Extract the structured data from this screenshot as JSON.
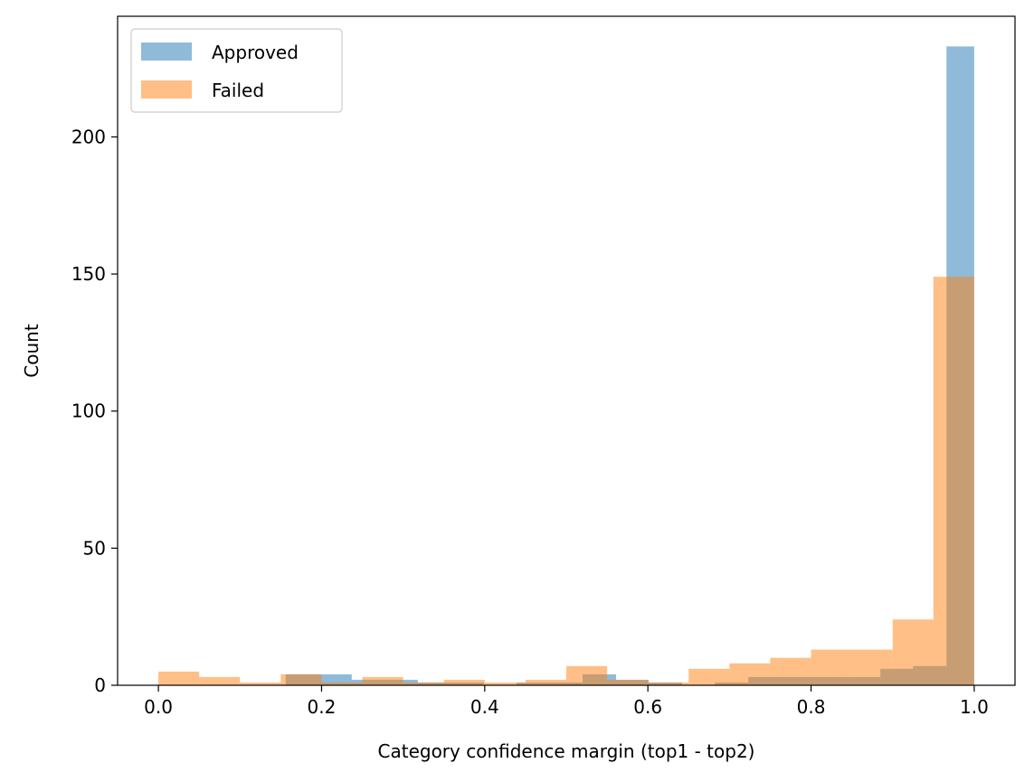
{
  "chart_data": {
    "type": "histogram",
    "title": "",
    "xlabel": "Category confidence margin (top1 - top2)",
    "ylabel": "Count",
    "xlim": [
      -0.05,
      1.05
    ],
    "ylim": [
      0,
      244
    ],
    "xticks": [
      0.0,
      0.2,
      0.4,
      0.6,
      0.8,
      1.0
    ],
    "xtick_labels": [
      "0.0",
      "0.2",
      "0.4",
      "0.6",
      "0.8",
      "1.0"
    ],
    "yticks": [
      0,
      50,
      100,
      150,
      200
    ],
    "ytick_labels": [
      "0",
      "50",
      "100",
      "150",
      "200"
    ],
    "grid": false,
    "legend": "top-left",
    "series": [
      {
        "name": "Approved",
        "color": "#1f77b4",
        "opacity": 0.5,
        "bins": [
          [
            0.156,
            0.196,
            4
          ],
          [
            0.196,
            0.237,
            4
          ],
          [
            0.237,
            0.277,
            2
          ],
          [
            0.277,
            0.318,
            2
          ],
          [
            0.318,
            0.358,
            1
          ],
          [
            0.358,
            0.399,
            1
          ],
          [
            0.399,
            0.439,
            0
          ],
          [
            0.439,
            0.48,
            1
          ],
          [
            0.48,
            0.52,
            1
          ],
          [
            0.52,
            0.561,
            4
          ],
          [
            0.561,
            0.601,
            2
          ],
          [
            0.601,
            0.642,
            1
          ],
          [
            0.642,
            0.682,
            0
          ],
          [
            0.682,
            0.723,
            1
          ],
          [
            0.723,
            0.763,
            3
          ],
          [
            0.763,
            0.804,
            3
          ],
          [
            0.804,
            0.844,
            3
          ],
          [
            0.844,
            0.885,
            3
          ],
          [
            0.885,
            0.925,
            6
          ],
          [
            0.925,
            0.966,
            7
          ],
          [
            0.966,
            1.0,
            233
          ]
        ]
      },
      {
        "name": "Failed",
        "color": "#ff7f0e",
        "opacity": 0.5,
        "bins": [
          [
            0.0,
            0.05,
            5
          ],
          [
            0.05,
            0.1,
            3
          ],
          [
            0.1,
            0.15,
            1
          ],
          [
            0.15,
            0.2,
            4
          ],
          [
            0.2,
            0.25,
            1
          ],
          [
            0.25,
            0.3,
            3
          ],
          [
            0.3,
            0.35,
            1
          ],
          [
            0.35,
            0.4,
            2
          ],
          [
            0.4,
            0.45,
            1
          ],
          [
            0.45,
            0.5,
            2
          ],
          [
            0.5,
            0.55,
            7
          ],
          [
            0.55,
            0.6,
            2
          ],
          [
            0.6,
            0.65,
            1
          ],
          [
            0.65,
            0.7,
            6
          ],
          [
            0.7,
            0.75,
            8
          ],
          [
            0.75,
            0.8,
            10
          ],
          [
            0.8,
            0.85,
            13
          ],
          [
            0.85,
            0.9,
            13
          ],
          [
            0.9,
            0.95,
            24
          ],
          [
            0.95,
            1.0,
            149
          ]
        ]
      }
    ]
  }
}
